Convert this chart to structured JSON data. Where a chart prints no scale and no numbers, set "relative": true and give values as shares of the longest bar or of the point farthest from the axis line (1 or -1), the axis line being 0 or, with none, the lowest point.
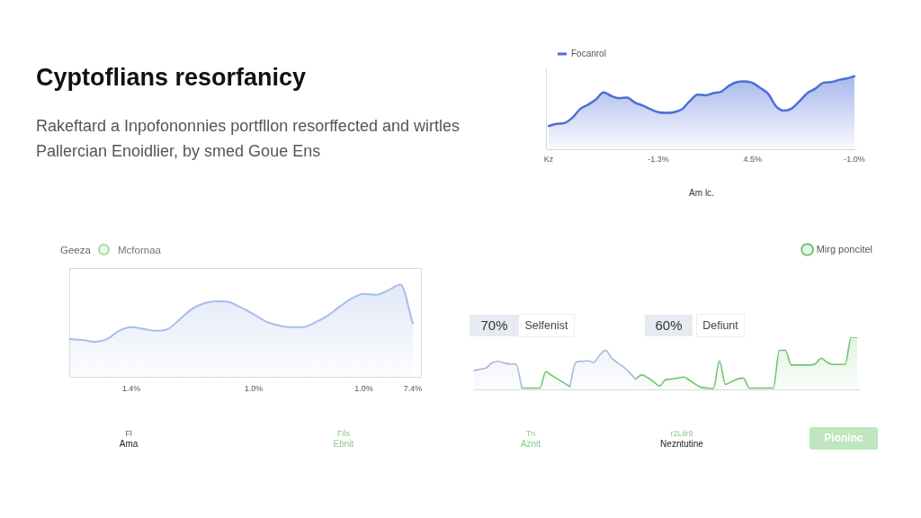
{
  "chart_data": [
    {
      "type": "other",
      "title": "Cyptoflians resorfanicy",
      "subtitle": "Rakeftard a Inpofononnies portfllon resorffected and wirtles Pallercian Enoidlier, by smed Goue Ens"
    },
    {
      "type": "area",
      "relative": true,
      "tick_labels": "x",
      "legend": "top left",
      "xlabel": "Am lc.",
      "categories": [
        "Kz",
        null,
        null,
        null,
        null,
        null,
        null,
        null,
        null,
        null,
        null,
        null,
        null,
        null,
        "-1.3%",
        null,
        null,
        null,
        null,
        null,
        null,
        null,
        null,
        null,
        null,
        null,
        "4.5%",
        null,
        null,
        null,
        null,
        null,
        null,
        null,
        null,
        null,
        null,
        null,
        null,
        "-1.0%"
      ],
      "series": [
        {
          "name": "Focanrol",
          "color": "#4d6fd6",
          "values": [
            0.32,
            0.35,
            0.36,
            0.43,
            0.55,
            0.61,
            0.68,
            0.78,
            0.73,
            0.7,
            0.71,
            0.64,
            0.6,
            0.55,
            0.51,
            0.5,
            0.51,
            0.55,
            0.66,
            0.75,
            0.74,
            0.77,
            0.79,
            0.87,
            0.92,
            0.93,
            0.91,
            0.84,
            0.76,
            0.59,
            0.53,
            0.56,
            0.66,
            0.77,
            0.83,
            0.91,
            0.92,
            0.95,
            0.97,
            1
          ]
        }
      ]
    },
    {
      "type": "area",
      "relative": true,
      "tick_labels": "x",
      "annotations": [
        "Geeza",
        "Mcfornaa"
      ],
      "categories": [
        null,
        null,
        null,
        null,
        null,
        "1.4%",
        null,
        null,
        null,
        null,
        null,
        null,
        null,
        null,
        null,
        "1.0%",
        null,
        null,
        null,
        null,
        null,
        null,
        null,
        null,
        "1.0%",
        null,
        null,
        null,
        "7.4%"
      ],
      "color": "#a8bdea",
      "values": [
        0.41,
        0.4,
        0.38,
        0.41,
        0.5,
        0.54,
        0.52,
        0.5,
        0.52,
        0.63,
        0.74,
        0.8,
        0.82,
        0.81,
        0.75,
        0.68,
        0.6,
        0.56,
        0.54,
        0.54,
        0.59,
        0.66,
        0.76,
        0.85,
        0.9,
        0.89,
        0.94,
        1,
        0.58
      ]
    },
    {
      "type": "area",
      "relative": true,
      "legend": "top right",
      "annotations": [
        "70%",
        "Selfenist",
        "60%",
        "Defiunt"
      ],
      "categories": [
        null,
        null,
        null,
        null,
        null,
        null,
        null,
        null,
        null,
        null,
        null,
        null,
        null,
        null,
        null,
        null,
        null,
        null,
        null,
        null,
        null,
        null,
        null,
        null,
        null,
        null,
        null,
        null,
        null,
        null,
        null,
        null,
        null,
        null,
        null,
        null,
        null,
        null,
        null,
        null,
        null,
        null,
        null,
        null,
        null,
        null,
        null,
        null,
        null,
        null,
        null,
        null,
        null,
        null,
        null,
        null,
        null,
        null,
        null,
        null,
        null,
        null,
        null,
        null,
        null
      ],
      "series": [
        {
          "color": "#a9b7e0",
          "values": [
            0.36,
            0.39,
            0.41,
            0.51,
            0.54,
            0.51,
            0.49,
            0.49,
            0.03,
            null,
            null,
            null,
            null,
            null,
            null,
            null,
            null,
            null,
            null,
            null,
            null,
            null,
            null,
            null,
            null,
            null,
            null,
            null,
            null,
            null,
            null,
            null,
            null,
            null,
            null,
            null,
            null,
            null,
            null,
            null,
            null,
            null,
            null,
            null,
            null,
            null,
            null,
            null,
            null,
            null,
            null,
            null,
            null,
            null,
            null,
            null,
            null,
            null,
            null,
            null,
            null,
            null,
            null,
            null,
            null
          ]
        },
        {
          "color": "#72c472",
          "values": [
            null,
            null,
            null,
            null,
            null,
            null,
            null,
            null,
            0.03,
            0.03,
            0.03,
            0.03,
            0.34,
            0.27,
            0.2,
            0.13,
            0.06,
            null,
            null,
            null,
            null,
            null,
            null,
            null,
            null,
            null,
            null,
            null,
            null,
            null,
            null,
            null,
            null,
            null,
            null,
            null,
            null,
            null,
            null,
            null,
            null,
            null,
            null,
            null,
            null,
            null,
            null,
            null,
            null,
            null,
            null,
            null,
            null,
            null,
            null,
            null,
            null,
            null,
            null,
            null,
            null,
            null,
            null,
            null,
            null
          ]
        },
        {
          "color": "#a9b7e0",
          "values": [
            null,
            null,
            null,
            null,
            null,
            null,
            null,
            null,
            null,
            null,
            null,
            null,
            null,
            null,
            null,
            null,
            0.06,
            0.52,
            0.54,
            0.55,
            0.52,
            0.66,
            0.75,
            0.6,
            0.51,
            0.43,
            0.32,
            0.2,
            null,
            null,
            null,
            null,
            null,
            null,
            null,
            null,
            null,
            null,
            null,
            null,
            null,
            null,
            null,
            null,
            null,
            null,
            null,
            null,
            null,
            null,
            null,
            null,
            null,
            null,
            null,
            null,
            null,
            null,
            null,
            null,
            null,
            null,
            null,
            null,
            null
          ]
        },
        {
          "name": "Mirg poncitel",
          "color": "#72c472",
          "values": [
            null,
            null,
            null,
            null,
            null,
            null,
            null,
            null,
            null,
            null,
            null,
            null,
            null,
            null,
            null,
            null,
            null,
            null,
            null,
            null,
            null,
            null,
            null,
            null,
            null,
            null,
            null,
            0.2,
            0.28,
            0.23,
            0.15,
            0.07,
            0.19,
            0.2,
            0.22,
            0.24,
            0.18,
            0.1,
            0.04,
            0.03,
            0.02,
            0.55,
            0.1,
            0.15,
            0.2,
            0.22,
            0.03,
            0.03,
            0.03,
            0.03,
            0.03,
            0.75,
            0.75,
            0.47,
            0.47,
            0.47,
            0.47,
            0.49,
            0.6,
            0.52,
            0.48,
            0.48,
            0.48,
            1,
            1
          ]
        }
      ]
    },
    {
      "type": "other",
      "annotations": [
        "Fl",
        "Ama",
        "Fils",
        "Ebnit",
        "Tn",
        "Aznit",
        "r2Lilr9",
        "Nezntutine",
        "Pioninc"
      ]
    }
  ]
}
